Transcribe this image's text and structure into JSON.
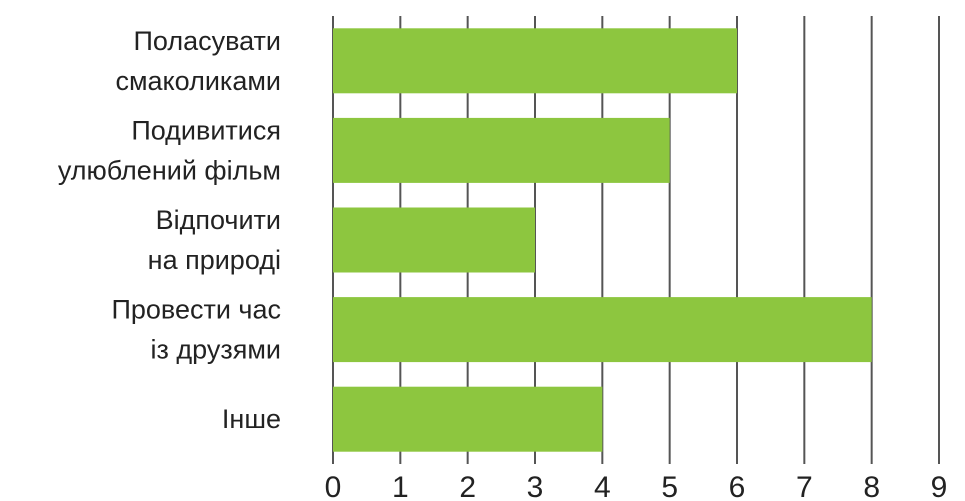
{
  "chart_data": {
    "type": "bar",
    "orientation": "horizontal",
    "categories": [
      [
        "Поласувати",
        "смаколиками"
      ],
      [
        "Подивитися",
        "улюблений фільм"
      ],
      [
        "Відпочити",
        "на природі"
      ],
      [
        "Провести час",
        "із друзями"
      ],
      [
        "Інше"
      ]
    ],
    "values": [
      6,
      5,
      3,
      8,
      4
    ],
    "xlim": [
      0,
      9
    ],
    "xticks": [
      "0",
      "1",
      "2",
      "3",
      "4",
      "5",
      "6",
      "7",
      "8",
      "9"
    ],
    "grid": true,
    "colors": {
      "bar": "#8dc63f",
      "grid": "#555555",
      "text": "#222222"
    }
  }
}
